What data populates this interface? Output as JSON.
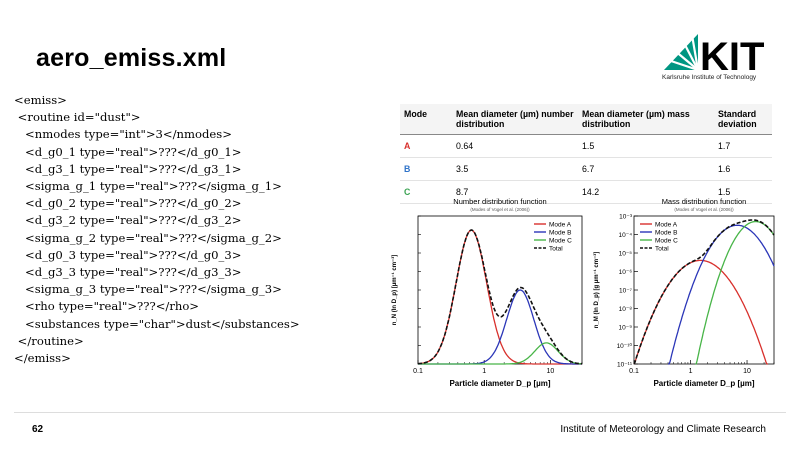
{
  "slide": {
    "title": "aero_emiss.xml",
    "page_number": "62",
    "institute": "Institute of Meteorology and Climate Research"
  },
  "logo": {
    "text": "KIT",
    "subtitle": "Karlsruhe Institute of Technology",
    "color": "#009682"
  },
  "code_lines": [
    "<emiss>",
    " <routine id=\"dust\">",
    "   <nmodes type=\"int\">3</nmodes>",
    "   <d_g0_1 type=\"real\">???</d_g0_1>",
    "   <d_g3_1 type=\"real\">???</d_g3_1>",
    "   <sigma_g_1 type=\"real\">???</sigma_g_1>",
    "   <d_g0_2 type=\"real\">???</d_g0_2>",
    "   <d_g3_2 type=\"real\">???</d_g3_2>",
    "   <sigma_g_2 type=\"real\">???</sigma_g_2>",
    "   <d_g0_3 type=\"real\">???</d_g0_3>",
    "   <d_g3_3 type=\"real\">???</d_g3_3>",
    "   <sigma_g_3 type=\"real\">???</sigma_g_3>",
    "   <rho type=\"real\">???</rho>",
    "   <substances type=\"char\">dust</substances>",
    " </routine>",
    "</emiss>"
  ],
  "table": {
    "headers": [
      "Mode",
      "Mean diameter (µm) number distribution",
      "Mean diameter (µm) mass distribution",
      "Standard deviation"
    ],
    "rows": [
      {
        "mode": "A",
        "number": "0.64",
        "mass": "1.5",
        "sd": "1.7"
      },
      {
        "mode": "B",
        "number": "3.5",
        "mass": "6.7",
        "sd": "1.6"
      },
      {
        "mode": "C",
        "number": "8.7",
        "mass": "14.2",
        "sd": "1.5"
      }
    ]
  },
  "chart_data": [
    {
      "type": "line",
      "title": "Number distribution function",
      "subtitle": "(Modes of Vogel et al. (2006))",
      "xlabel": "Particle diameter D_p [µm]",
      "ylabel": "n_N (ln D_p) [µm⁻¹ cm⁻³]",
      "x_scale": "log",
      "xlim": [
        0.1,
        30
      ],
      "xticks": [
        "0.1",
        "1",
        "10"
      ],
      "legend": "top-right",
      "series": [
        {
          "name": "Mode A",
          "color": "#d8302c",
          "dash": false,
          "peak": 380,
          "center_um": 0.64,
          "sigma": 1.7
        },
        {
          "name": "Mode B",
          "color": "#2b36b8",
          "dash": false,
          "peak": 210,
          "center_um": 3.5,
          "sigma": 1.6
        },
        {
          "name": "Mode C",
          "color": "#48b548",
          "dash": false,
          "peak": 60,
          "center_um": 8.7,
          "sigma": 1.5
        },
        {
          "name": "Total",
          "color": "#111111",
          "dash": true
        }
      ]
    },
    {
      "type": "line",
      "title": "Mass distribution function",
      "subtitle": "(Modes of Vogel et al. (2006))",
      "xlabel": "Particle diameter D_p [µm]",
      "ylabel": "n_M (ln D_p) [g µm⁻¹ cm⁻³]",
      "x_scale": "log",
      "y_scale": "log",
      "xlim": [
        0.1,
        30
      ],
      "ylim_exp": [
        -11,
        -3
      ],
      "xticks": [
        "0.1",
        "1",
        "10"
      ],
      "yticks": [
        "10⁻³",
        "10⁻⁴",
        "10⁻⁵",
        "10⁻⁶",
        "10⁻⁷",
        "10⁻⁸",
        "10⁻⁹",
        "10⁻¹⁰",
        "10⁻¹¹"
      ],
      "legend": "top-left",
      "series": [
        {
          "name": "Mode A",
          "color": "#d8302c",
          "dash": false,
          "peak_exp": -5.4,
          "center_um": 1.5,
          "sigma": 1.7
        },
        {
          "name": "Mode B",
          "color": "#2b36b8",
          "dash": false,
          "peak_exp": -3.5,
          "center_um": 6.7,
          "sigma": 1.6
        },
        {
          "name": "Mode C",
          "color": "#48b548",
          "dash": false,
          "peak_exp": -3.3,
          "center_um": 14.2,
          "sigma": 1.5
        },
        {
          "name": "Total",
          "color": "#111111",
          "dash": true
        }
      ]
    }
  ]
}
